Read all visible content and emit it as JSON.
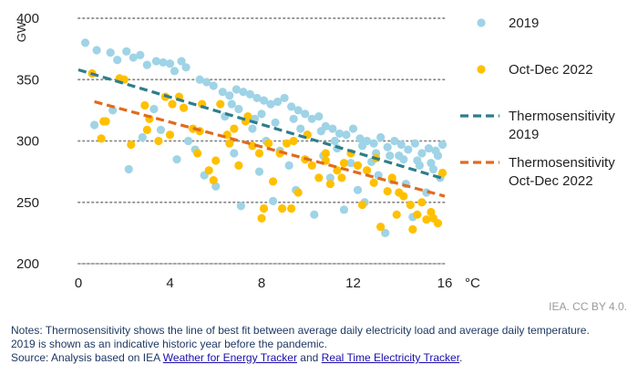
{
  "chart_data": {
    "type": "scatter",
    "xlabel": "°C",
    "ylabel": "GW",
    "xlim": [
      0,
      16
    ],
    "ylim": [
      200,
      400
    ],
    "xticks": [
      "0",
      "4",
      "8",
      "12",
      "16"
    ],
    "yticks": [
      "200",
      "250",
      "300",
      "350",
      "400"
    ],
    "grid": "horizontal dotted",
    "legend_position": "right",
    "series": [
      {
        "name": "2019",
        "kind": "points",
        "color": "#9fd3e6",
        "points": [
          [
            0.3,
            380
          ],
          [
            0.8,
            374
          ],
          [
            1.4,
            372
          ],
          [
            1.7,
            366
          ],
          [
            2.1,
            373
          ],
          [
            2.4,
            368
          ],
          [
            2.7,
            370
          ],
          [
            3.0,
            362
          ],
          [
            3.4,
            365
          ],
          [
            3.7,
            364
          ],
          [
            4.0,
            363
          ],
          [
            4.2,
            357
          ],
          [
            4.5,
            365
          ],
          [
            4.7,
            360
          ],
          [
            5.3,
            350
          ],
          [
            5.6,
            348
          ],
          [
            5.9,
            345
          ],
          [
            6.3,
            340
          ],
          [
            6.6,
            337
          ],
          [
            6.9,
            342
          ],
          [
            7.2,
            340
          ],
          [
            7.5,
            338
          ],
          [
            7.8,
            335
          ],
          [
            8.1,
            333
          ],
          [
            8.4,
            330
          ],
          [
            8.7,
            332
          ],
          [
            9.0,
            335
          ],
          [
            9.3,
            328
          ],
          [
            9.6,
            325
          ],
          [
            9.9,
            322
          ],
          [
            10.2,
            318
          ],
          [
            10.5,
            320
          ],
          [
            10.8,
            312
          ],
          [
            11.1,
            310
          ],
          [
            11.4,
            306
          ],
          [
            11.7,
            305
          ],
          [
            12.0,
            310
          ],
          [
            12.3,
            302
          ],
          [
            12.6,
            300
          ],
          [
            12.9,
            298
          ],
          [
            13.2,
            303
          ],
          [
            13.5,
            295
          ],
          [
            13.8,
            300
          ],
          [
            14.1,
            297
          ],
          [
            14.4,
            293
          ],
          [
            14.7,
            298
          ],
          [
            15.0,
            290
          ],
          [
            15.3,
            294
          ],
          [
            15.6,
            292
          ],
          [
            15.9,
            297
          ],
          [
            0.7,
            313
          ],
          [
            1.5,
            325
          ],
          [
            2.2,
            277
          ],
          [
            2.8,
            303
          ],
          [
            3.3,
            326
          ],
          [
            3.6,
            309
          ],
          [
            4.3,
            285
          ],
          [
            4.8,
            300
          ],
          [
            5.1,
            293
          ],
          [
            5.5,
            272
          ],
          [
            6.0,
            263
          ],
          [
            6.4,
            320
          ],
          [
            6.8,
            290
          ],
          [
            7.1,
            247
          ],
          [
            7.6,
            310
          ],
          [
            7.9,
            275
          ],
          [
            8.2,
            300
          ],
          [
            8.5,
            251
          ],
          [
            8.8,
            292
          ],
          [
            9.2,
            280
          ],
          [
            9.5,
            260
          ],
          [
            10.0,
            305
          ],
          [
            10.3,
            240
          ],
          [
            10.7,
            288
          ],
          [
            11.0,
            270
          ],
          [
            11.3,
            294
          ],
          [
            11.6,
            244
          ],
          [
            11.9,
            282
          ],
          [
            12.2,
            260
          ],
          [
            12.5,
            250
          ],
          [
            12.8,
            283
          ],
          [
            13.1,
            272
          ],
          [
            13.4,
            225
          ],
          [
            13.7,
            268
          ],
          [
            14.0,
            288
          ],
          [
            14.3,
            265
          ],
          [
            14.6,
            238
          ],
          [
            14.9,
            280
          ],
          [
            15.2,
            258
          ],
          [
            15.5,
            277
          ],
          [
            15.8,
            270
          ],
          [
            15.7,
            288
          ],
          [
            6.7,
            330
          ],
          [
            7.0,
            326
          ],
          [
            7.7,
            318
          ],
          [
            8.0,
            322
          ],
          [
            8.6,
            315
          ],
          [
            9.4,
            318
          ],
          [
            9.7,
            310
          ],
          [
            10.6,
            308
          ],
          [
            11.2,
            300
          ],
          [
            12.4,
            296
          ],
          [
            13.0,
            290
          ],
          [
            13.6,
            288
          ],
          [
            14.2,
            285
          ],
          [
            14.8,
            284
          ],
          [
            15.4,
            282
          ]
        ]
      },
      {
        "name": "Oct-Dec 2022",
        "kind": "points",
        "color": "#ffc000",
        "points": [
          [
            0.6,
            355
          ],
          [
            1.0,
            302
          ],
          [
            1.2,
            316
          ],
          [
            1.8,
            351
          ],
          [
            2.3,
            297
          ],
          [
            2.9,
            329
          ],
          [
            3.1,
            318
          ],
          [
            3.5,
            300
          ],
          [
            3.8,
            336
          ],
          [
            4.1,
            330
          ],
          [
            4.4,
            336
          ],
          [
            4.6,
            327
          ],
          [
            5.0,
            310
          ],
          [
            5.2,
            290
          ],
          [
            5.4,
            330
          ],
          [
            5.7,
            276
          ],
          [
            5.9,
            268
          ],
          [
            6.2,
            330
          ],
          [
            6.5,
            305
          ],
          [
            6.8,
            310
          ],
          [
            7.0,
            280
          ],
          [
            7.3,
            316
          ],
          [
            7.6,
            296
          ],
          [
            7.9,
            290
          ],
          [
            8.1,
            245
          ],
          [
            8.3,
            298
          ],
          [
            8.5,
            267
          ],
          [
            8.8,
            290
          ],
          [
            9.1,
            298
          ],
          [
            9.4,
            300
          ],
          [
            9.6,
            258
          ],
          [
            9.9,
            285
          ],
          [
            10.2,
            280
          ],
          [
            10.5,
            270
          ],
          [
            10.8,
            284
          ],
          [
            11.0,
            265
          ],
          [
            11.3,
            276
          ],
          [
            11.6,
            282
          ],
          [
            11.9,
            290
          ],
          [
            12.2,
            280
          ],
          [
            12.6,
            276
          ],
          [
            12.9,
            266
          ],
          [
            13.2,
            230
          ],
          [
            13.5,
            259
          ],
          [
            13.7,
            270
          ],
          [
            14.0,
            258
          ],
          [
            14.2,
            255
          ],
          [
            14.5,
            248
          ],
          [
            14.8,
            240
          ],
          [
            15.0,
            250
          ],
          [
            15.2,
            236
          ],
          [
            15.5,
            237
          ],
          [
            15.7,
            233
          ],
          [
            15.9,
            274
          ],
          [
            1.1,
            316
          ],
          [
            2.0,
            350
          ],
          [
            3.0,
            309
          ],
          [
            4.0,
            305
          ],
          [
            5.3,
            308
          ],
          [
            6.0,
            284
          ],
          [
            6.6,
            298
          ],
          [
            7.4,
            320
          ],
          [
            8.0,
            237
          ],
          [
            8.9,
            245
          ],
          [
            9.3,
            245
          ],
          [
            10.0,
            305
          ],
          [
            10.8,
            290
          ],
          [
            11.5,
            270
          ],
          [
            12.4,
            248
          ],
          [
            13.0,
            286
          ],
          [
            13.9,
            240
          ],
          [
            14.6,
            228
          ],
          [
            15.4,
            242
          ]
        ]
      },
      {
        "name": "Thermosensitivity 2019",
        "kind": "trend",
        "color": "#2e7d8c",
        "x": [
          0,
          16
        ],
        "y": [
          358,
          269
        ]
      },
      {
        "name": "Thermosensitivity Oct-Dec 2022",
        "kind": "trend",
        "color": "#e06b1f",
        "x": [
          0.7,
          16
        ],
        "y": [
          332,
          255
        ]
      }
    ],
    "legend": [
      {
        "label_lines": [
          "2019"
        ],
        "marker": "dot",
        "color": "#9fd3e6"
      },
      {
        "label_lines": [
          "Oct-Dec 2022"
        ],
        "marker": "dot",
        "color": "#ffc000"
      },
      {
        "label_lines": [
          "Thermosensitivity",
          "2019"
        ],
        "marker": "dash",
        "color": "#2e7d8c"
      },
      {
        "label_lines": [
          "Thermosensitivity",
          "Oct-Dec 2022"
        ],
        "marker": "dash",
        "color": "#e06b1f"
      }
    ]
  },
  "credit": "IEA. CC BY 4.0.",
  "notes": {
    "line1": "Notes: Thermosensitivity shows the line of best fit between average daily electricity load and average daily temperature.",
    "line2": "2019 is shown as an indicative historic year before the pandemic.",
    "source_prefix": "Source: Analysis based on IEA ",
    "link1": "Weather for Energy Tracker",
    "between": " and ",
    "link2": "Real Time Electricity Tracker",
    "suffix": "."
  }
}
